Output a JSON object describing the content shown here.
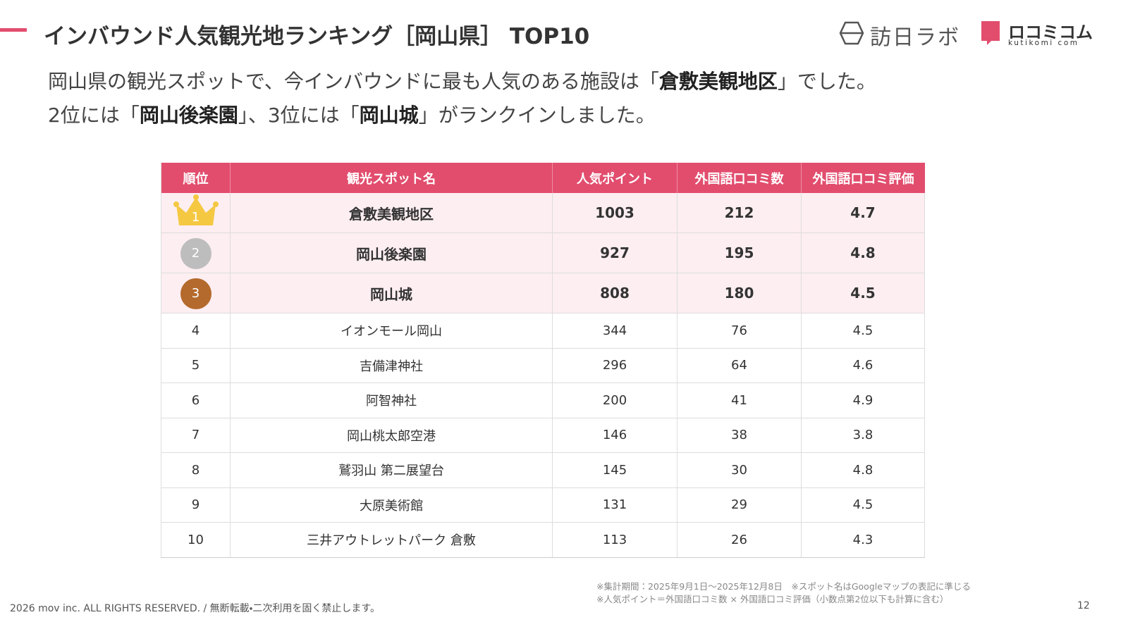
{
  "header": {
    "title": "インバウンド人気観光地ランキング［岡山県］ TOP10",
    "logo1": "訪日ラボ",
    "logo2": "ロコミコム",
    "logo2_sub": "kutikomi com"
  },
  "summary": [
    [
      {
        "text": "岡山県の観光スポットで、今インバウンドに最も人気のある施設は「",
        "bold": false
      },
      {
        "text": "倉敷美観地区",
        "bold": true
      },
      {
        "text": "」でした。",
        "bold": false
      }
    ],
    [
      {
        "text": "2位には「",
        "bold": false
      },
      {
        "text": "岡山後楽園",
        "bold": true
      },
      {
        "text": "」、3位には「",
        "bold": false
      },
      {
        "text": "岡山城",
        "bold": true
      },
      {
        "text": "」がランクインしました。",
        "bold": false
      }
    ]
  ],
  "table": {
    "columns": [
      "順位",
      "観光スポット名",
      "人気ポイント",
      "外国語口コミ数",
      "外国語口コミ評価"
    ],
    "rows": [
      [
        1,
        "倉敷美観地区",
        1003,
        212,
        4.7
      ],
      [
        2,
        "岡山後楽園",
        927,
        195,
        4.8
      ],
      [
        3,
        "岡山城",
        808,
        180,
        4.5
      ],
      [
        4,
        "イオンモール岡山",
        344,
        76,
        4.5
      ],
      [
        5,
        "吉備津神社",
        296,
        64,
        4.6
      ],
      [
        6,
        "阿智神社",
        200,
        41,
        4.9
      ],
      [
        7,
        "岡山桃太郎空港",
        146,
        38,
        3.8
      ],
      [
        8,
        "鷲羽山 第二展望台",
        145,
        30,
        4.8
      ],
      [
        9,
        "大原美術館",
        131,
        29,
        4.5
      ],
      [
        10,
        "三井アウトレットパーク 倉敷",
        113,
        26,
        4.3
      ]
    ]
  },
  "notes": [
    "※集計期間：2025年9月1日〜2025年12月8日　※スポット名はGoogleマップの表記に準じる",
    "※人気ポイント＝外国語口コミ数 × 外国語口コミ評価（小数点第2位以下も計算に含む）"
  ],
  "footer": {
    "copyright": "2026 mov inc. ALL RIGHTS RESERVED. / 無断転載・二次利用を固く禁止します。",
    "page": "12"
  }
}
